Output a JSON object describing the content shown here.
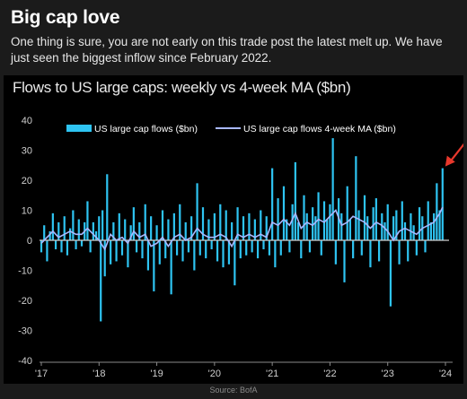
{
  "header": {
    "title": "Big cap love",
    "subtitle": "One thing is sure, you are not early on this trade post the latest melt up. We have just seen the biggest inflow since February 2022."
  },
  "footer": {
    "source": "Source: BofA"
  },
  "annotation": {
    "arrow_color": "#e8382c"
  },
  "chart_data": {
    "type": "bar",
    "title": "Flows to US large caps: weekly vs 4-week MA ($bn)",
    "xlabel": "",
    "ylabel": "",
    "ylim": [
      -40,
      40
    ],
    "y_ticks": [
      40,
      30,
      20,
      10,
      0,
      -10,
      -20,
      -30,
      -40
    ],
    "x_range": [
      2017.0,
      2024.0
    ],
    "x_ticks": [
      {
        "label": "'17",
        "value": 2017
      },
      {
        "label": "'18",
        "value": 2018
      },
      {
        "label": "'19",
        "value": 2019
      },
      {
        "label": "'20",
        "value": 2020
      },
      {
        "label": "'21",
        "value": 2021
      },
      {
        "label": "'22",
        "value": 2022
      },
      {
        "label": "'23",
        "value": 2023
      },
      {
        "label": "'24",
        "value": 2024
      }
    ],
    "grid": false,
    "legend_position": "top",
    "colors": {
      "bars": "#2ec4f2",
      "ma_line": "#a9b8ff",
      "axis": "#8a8a8a",
      "zero_line": "#d0d0d0"
    },
    "series": [
      {
        "name": "US large cap flows ($bn)",
        "kind": "bar",
        "points": [
          [
            2017.0,
            -4
          ],
          [
            2017.05,
            5
          ],
          [
            2017.1,
            -7
          ],
          [
            2017.15,
            3
          ],
          [
            2017.2,
            9
          ],
          [
            2017.25,
            -3
          ],
          [
            2017.3,
            6
          ],
          [
            2017.35,
            -4
          ],
          [
            2017.4,
            8
          ],
          [
            2017.45,
            -5
          ],
          [
            2017.5,
            4
          ],
          [
            2017.55,
            10
          ],
          [
            2017.6,
            -3
          ],
          [
            2017.65,
            7
          ],
          [
            2017.7,
            -2
          ],
          [
            2017.75,
            6
          ],
          [
            2017.8,
            13
          ],
          [
            2017.85,
            -4
          ],
          [
            2017.9,
            6
          ],
          [
            2017.95,
            3
          ],
          [
            2018.0,
            8
          ],
          [
            2018.03,
            -27
          ],
          [
            2018.06,
            10
          ],
          [
            2018.1,
            -12
          ],
          [
            2018.14,
            22
          ],
          [
            2018.2,
            -8
          ],
          [
            2018.25,
            6
          ],
          [
            2018.3,
            -7
          ],
          [
            2018.35,
            9
          ],
          [
            2018.4,
            -5
          ],
          [
            2018.45,
            7
          ],
          [
            2018.5,
            -9
          ],
          [
            2018.55,
            5
          ],
          [
            2018.6,
            11
          ],
          [
            2018.65,
            -4
          ],
          [
            2018.7,
            6
          ],
          [
            2018.75,
            -6
          ],
          [
            2018.8,
            12
          ],
          [
            2018.85,
            -10
          ],
          [
            2018.9,
            8
          ],
          [
            2018.95,
            -17
          ],
          [
            2019.0,
            5
          ],
          [
            2019.05,
            -8
          ],
          [
            2019.1,
            10
          ],
          [
            2019.15,
            -6
          ],
          [
            2019.2,
            7
          ],
          [
            2019.25,
            -18
          ],
          [
            2019.3,
            9
          ],
          [
            2019.35,
            -5
          ],
          [
            2019.4,
            12
          ],
          [
            2019.45,
            -7
          ],
          [
            2019.5,
            6
          ],
          [
            2019.55,
            -4
          ],
          [
            2019.6,
            8
          ],
          [
            2019.65,
            -10
          ],
          [
            2019.7,
            19
          ],
          [
            2019.75,
            -5
          ],
          [
            2019.8,
            11
          ],
          [
            2019.85,
            -6
          ],
          [
            2019.9,
            7
          ],
          [
            2019.95,
            -3
          ],
          [
            2020.0,
            9
          ],
          [
            2020.05,
            -7
          ],
          [
            2020.1,
            12
          ],
          [
            2020.15,
            -9
          ],
          [
            2020.2,
            10
          ],
          [
            2020.25,
            -8
          ],
          [
            2020.3,
            6
          ],
          [
            2020.35,
            -15
          ],
          [
            2020.4,
            11
          ],
          [
            2020.45,
            -6
          ],
          [
            2020.5,
            8
          ],
          [
            2020.55,
            -5
          ],
          [
            2020.6,
            9
          ],
          [
            2020.65,
            -4
          ],
          [
            2020.7,
            7
          ],
          [
            2020.75,
            -6
          ],
          [
            2020.8,
            10
          ],
          [
            2020.85,
            -3
          ],
          [
            2020.9,
            8
          ],
          [
            2020.95,
            -5
          ],
          [
            2021.0,
            24
          ],
          [
            2021.05,
            -9
          ],
          [
            2021.1,
            14
          ],
          [
            2021.15,
            -5
          ],
          [
            2021.2,
            18
          ],
          [
            2021.25,
            7
          ],
          [
            2021.3,
            -4
          ],
          [
            2021.35,
            12
          ],
          [
            2021.4,
            26
          ],
          [
            2021.45,
            6
          ],
          [
            2021.5,
            -6
          ],
          [
            2021.55,
            15
          ],
          [
            2021.6,
            9
          ],
          [
            2021.65,
            -4
          ],
          [
            2021.7,
            11
          ],
          [
            2021.75,
            8
          ],
          [
            2021.8,
            16
          ],
          [
            2021.85,
            -5
          ],
          [
            2021.9,
            13
          ],
          [
            2021.95,
            7
          ],
          [
            2022.0,
            12
          ],
          [
            2022.05,
            34
          ],
          [
            2022.1,
            -8
          ],
          [
            2022.15,
            14
          ],
          [
            2022.2,
            9
          ],
          [
            2022.25,
            -14
          ],
          [
            2022.3,
            18
          ],
          [
            2022.35,
            7
          ],
          [
            2022.4,
            -6
          ],
          [
            2022.45,
            28
          ],
          [
            2022.5,
            10
          ],
          [
            2022.55,
            -5
          ],
          [
            2022.6,
            15
          ],
          [
            2022.65,
            8
          ],
          [
            2022.7,
            -9
          ],
          [
            2022.75,
            11
          ],
          [
            2022.8,
            14
          ],
          [
            2022.85,
            -7
          ],
          [
            2022.9,
            9
          ],
          [
            2022.95,
            6
          ],
          [
            2023.0,
            12
          ],
          [
            2023.05,
            -22
          ],
          [
            2023.1,
            8
          ],
          [
            2023.15,
            10
          ],
          [
            2023.2,
            -8
          ],
          [
            2023.25,
            13
          ],
          [
            2023.3,
            6
          ],
          [
            2023.35,
            -7
          ],
          [
            2023.4,
            9
          ],
          [
            2023.45,
            5
          ],
          [
            2023.5,
            -5
          ],
          [
            2023.55,
            11
          ],
          [
            2023.6,
            8
          ],
          [
            2023.65,
            -4
          ],
          [
            2023.7,
            13
          ],
          [
            2023.75,
            6
          ],
          [
            2023.8,
            9
          ],
          [
            2023.85,
            19
          ],
          [
            2023.9,
            10
          ],
          [
            2023.95,
            24
          ]
        ]
      },
      {
        "name": "US large cap flows 4-week MA ($bn)",
        "kind": "line",
        "points": [
          [
            2017.0,
            -1
          ],
          [
            2017.1,
            1
          ],
          [
            2017.2,
            3
          ],
          [
            2017.3,
            1
          ],
          [
            2017.4,
            2
          ],
          [
            2017.5,
            3
          ],
          [
            2017.6,
            2
          ],
          [
            2017.7,
            2
          ],
          [
            2017.8,
            4
          ],
          [
            2017.9,
            2
          ],
          [
            2018.0,
            0
          ],
          [
            2018.1,
            -3
          ],
          [
            2018.2,
            2
          ],
          [
            2018.3,
            0
          ],
          [
            2018.4,
            1
          ],
          [
            2018.5,
            -1
          ],
          [
            2018.6,
            3
          ],
          [
            2018.7,
            1
          ],
          [
            2018.8,
            2
          ],
          [
            2018.9,
            -2
          ],
          [
            2019.0,
            -1
          ],
          [
            2019.1,
            1
          ],
          [
            2019.2,
            -2
          ],
          [
            2019.3,
            1
          ],
          [
            2019.4,
            2
          ],
          [
            2019.5,
            0
          ],
          [
            2019.6,
            1
          ],
          [
            2019.7,
            4
          ],
          [
            2019.8,
            2
          ],
          [
            2019.9,
            1
          ],
          [
            2020.0,
            1
          ],
          [
            2020.1,
            2
          ],
          [
            2020.2,
            1
          ],
          [
            2020.3,
            -2
          ],
          [
            2020.4,
            2
          ],
          [
            2020.5,
            1
          ],
          [
            2020.6,
            2
          ],
          [
            2020.7,
            1
          ],
          [
            2020.8,
            2
          ],
          [
            2020.9,
            1
          ],
          [
            2021.0,
            6
          ],
          [
            2021.1,
            5
          ],
          [
            2021.2,
            7
          ],
          [
            2021.3,
            5
          ],
          [
            2021.4,
            9
          ],
          [
            2021.5,
            4
          ],
          [
            2021.6,
            6
          ],
          [
            2021.7,
            5
          ],
          [
            2021.8,
            7
          ],
          [
            2021.9,
            6
          ],
          [
            2022.0,
            8
          ],
          [
            2022.1,
            10
          ],
          [
            2022.2,
            5
          ],
          [
            2022.3,
            6
          ],
          [
            2022.4,
            8
          ],
          [
            2022.5,
            7
          ],
          [
            2022.6,
            6
          ],
          [
            2022.7,
            4
          ],
          [
            2022.8,
            6
          ],
          [
            2022.9,
            5
          ],
          [
            2023.0,
            3
          ],
          [
            2023.1,
            0
          ],
          [
            2023.2,
            3
          ],
          [
            2023.3,
            4
          ],
          [
            2023.4,
            3
          ],
          [
            2023.5,
            2
          ],
          [
            2023.6,
            4
          ],
          [
            2023.7,
            5
          ],
          [
            2023.8,
            6
          ],
          [
            2023.9,
            9
          ],
          [
            2023.95,
            11
          ]
        ]
      }
    ]
  }
}
